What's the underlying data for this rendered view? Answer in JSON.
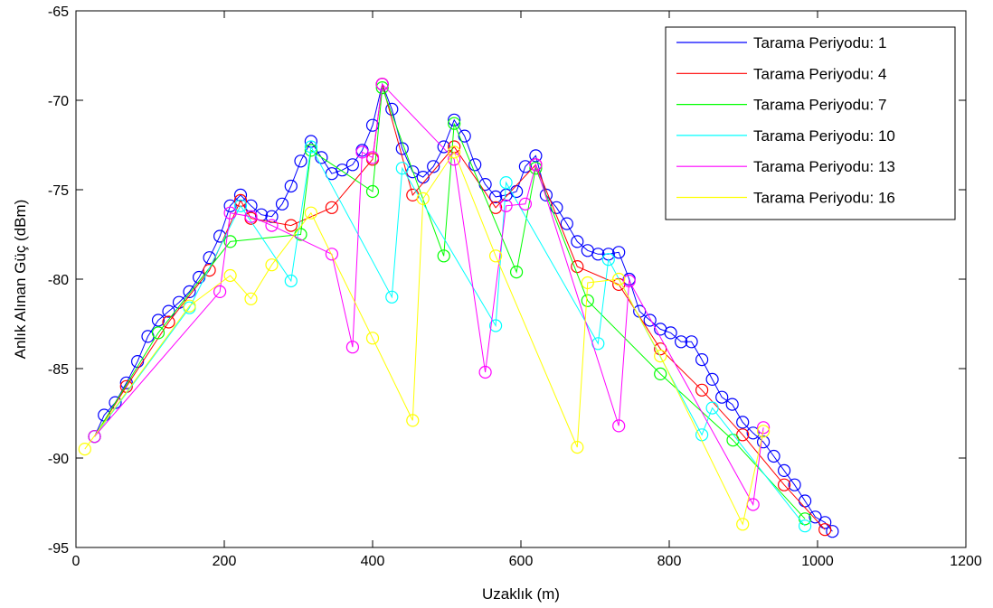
{
  "chart_data": {
    "type": "line",
    "title": "",
    "xlabel": "Uzaklık (m)",
    "ylabel": "Anlık Alınan Güç (dBm)",
    "xlim": [
      0,
      1200
    ],
    "ylim": [
      -95,
      -65
    ],
    "xticks": [
      0,
      200,
      400,
      600,
      800,
      1000,
      1200
    ],
    "yticks": [
      -95,
      -90,
      -85,
      -80,
      -75,
      -70,
      -65
    ],
    "grid": false,
    "legend_position": "top-right",
    "series": [
      {
        "name": "Tarama Periyodu: 1",
        "color": "#0000ff",
        "marker": "circle",
        "x": [
          25,
          38,
          53,
          68,
          83,
          97,
          111,
          125,
          139,
          153,
          166,
          180,
          194,
          208,
          222,
          236,
          250,
          264,
          278,
          290,
          303,
          317,
          331,
          345,
          359,
          373,
          386,
          400,
          413,
          426,
          440,
          454,
          468,
          482,
          496,
          510,
          524,
          538,
          552,
          566,
          580,
          594,
          606,
          620,
          634,
          648,
          662,
          676,
          690,
          704,
          718,
          732,
          746,
          760,
          774,
          788,
          802,
          816,
          830,
          844,
          858,
          871,
          885,
          899,
          913,
          927,
          941,
          955,
          969,
          983,
          997,
          1010,
          1020
        ],
        "y": [
          -88.8,
          -87.6,
          -86.9,
          -85.8,
          -84.6,
          -83.2,
          -82.3,
          -81.8,
          -81.3,
          -80.7,
          -79.9,
          -78.8,
          -77.6,
          -75.9,
          -75.3,
          -75.9,
          -76.4,
          -76.5,
          -75.8,
          -74.8,
          -73.4,
          -72.3,
          -73.2,
          -74.1,
          -73.9,
          -73.6,
          -72.8,
          -71.4,
          -69.1,
          -70.5,
          -72.7,
          -74.0,
          -74.3,
          -73.7,
          -72.6,
          -71.1,
          -72.0,
          -73.6,
          -74.7,
          -75.4,
          -75.3,
          -75.1,
          -73.7,
          -73.1,
          -75.3,
          -76.0,
          -76.9,
          -77.9,
          -78.4,
          -78.6,
          -78.6,
          -78.5,
          -80.0,
          -81.8,
          -82.3,
          -82.8,
          -83.0,
          -83.5,
          -83.5,
          -84.5,
          -85.6,
          -86.6,
          -87.0,
          -88.0,
          -88.6,
          -89.1,
          -89.9,
          -90.7,
          -91.5,
          -92.4,
          -93.3,
          -93.6,
          -94.1
        ]
      },
      {
        "name": "Tarama Periyodu: 4",
        "color": "#ff0000",
        "marker": "circle",
        "x": [
          25,
          68,
          125,
          180,
          222,
          236,
          290,
          345,
          400,
          413,
          454,
          510,
          566,
          620,
          676,
          732,
          788,
          844,
          899,
          955,
          1010
        ],
        "y": [
          -88.8,
          -86.0,
          -82.4,
          -79.5,
          -75.6,
          -76.6,
          -77.0,
          -76.0,
          -73.3,
          -69.1,
          -75.3,
          -72.6,
          -76.0,
          -73.6,
          -79.3,
          -80.3,
          -83.9,
          -86.2,
          -88.7,
          -91.5,
          -94.0
        ]
      },
      {
        "name": "Tarama Periyodu: 7",
        "color": "#00ff00",
        "marker": "circle",
        "x": [
          25,
          111,
          208,
          303,
          317,
          400,
          413,
          496,
          510,
          594,
          620,
          690,
          788,
          886,
          983
        ],
        "y": [
          -88.8,
          -83.0,
          -77.9,
          -77.5,
          -72.8,
          -75.1,
          -69.3,
          -78.7,
          -71.3,
          -79.6,
          -73.8,
          -81.2,
          -85.3,
          -89.0,
          -93.4
        ]
      },
      {
        "name": "Tarama Periyodu: 10",
        "color": "#00ffff",
        "marker": "circle",
        "x": [
          25,
          153,
          222,
          290,
          317,
          426,
          440,
          566,
          580,
          704,
          718,
          844,
          858,
          983
        ],
        "y": [
          -88.8,
          -81.6,
          -75.9,
          -80.1,
          -72.6,
          -81.0,
          -73.8,
          -82.6,
          -74.6,
          -83.6,
          -78.9,
          -88.7,
          -87.2,
          -93.8
        ]
      },
      {
        "name": "Tarama Periyodu: 13",
        "color": "#ff00ff",
        "marker": "circle",
        "x": [
          25,
          194,
          208,
          236,
          264,
          345,
          373,
          386,
          400,
          413,
          510,
          552,
          580,
          606,
          620,
          732,
          746,
          913,
          927
        ],
        "y": [
          -88.8,
          -80.7,
          -76.3,
          -76.5,
          -77.0,
          -78.6,
          -83.8,
          -72.9,
          -73.2,
          -69.1,
          -73.3,
          -85.2,
          -75.9,
          -75.8,
          -73.6,
          -88.2,
          -80.1,
          -92.6,
          -88.3
        ]
      },
      {
        "name": "Tarama Periyodu: 16",
        "color": "#ffff00",
        "marker": "circle",
        "x": [
          12,
          153,
          208,
          236,
          264,
          317,
          400,
          454,
          468,
          510,
          566,
          676,
          690,
          732,
          788,
          899,
          927
        ],
        "y": [
          -89.5,
          -81.5,
          -79.8,
          -81.1,
          -79.2,
          -76.3,
          -83.3,
          -87.9,
          -75.5,
          -72.9,
          -78.7,
          -89.4,
          -80.2,
          -80.0,
          -84.3,
          -93.7,
          -88.5
        ]
      }
    ]
  }
}
